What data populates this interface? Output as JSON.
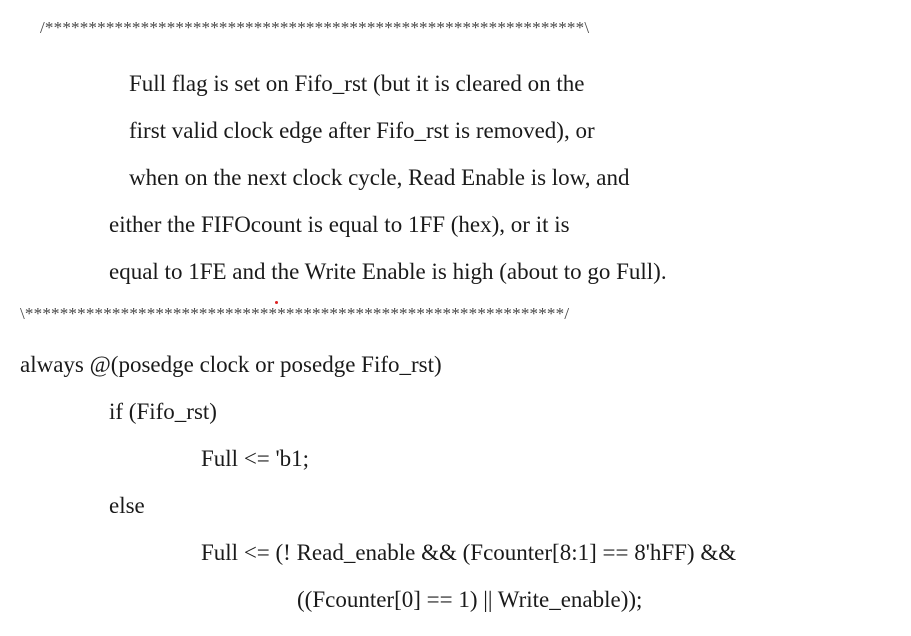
{
  "comment_block": {
    "top_border": "/**************************************************************\\",
    "lines": [
      "Full flag is set on Fifo_rst (but it is cleared on the",
      "first valid clock edge after Fifo_rst is removed), or",
      "when on the next clock cycle, Read Enable is low, and",
      "either the FIFOcount is equal to 1FF (hex), or it is",
      "equal to 1FE and the Write Enable is high (about to go Full)."
    ],
    "bottom_border": "\\**************************************************************/"
  },
  "code": {
    "always_line": "always @(posedge clock or posedge Fifo_rst)",
    "if_line": "if (Fifo_rst)",
    "full_reset_line": "Full <= 'b1;",
    "else_line": "else",
    "full_assign_line": "Full <= (! Read_enable && (Fcounter[8:1] == 8'hFF) &&",
    "full_assign_cont": "((Fcounter[0] == 1) || Write_enable));"
  }
}
